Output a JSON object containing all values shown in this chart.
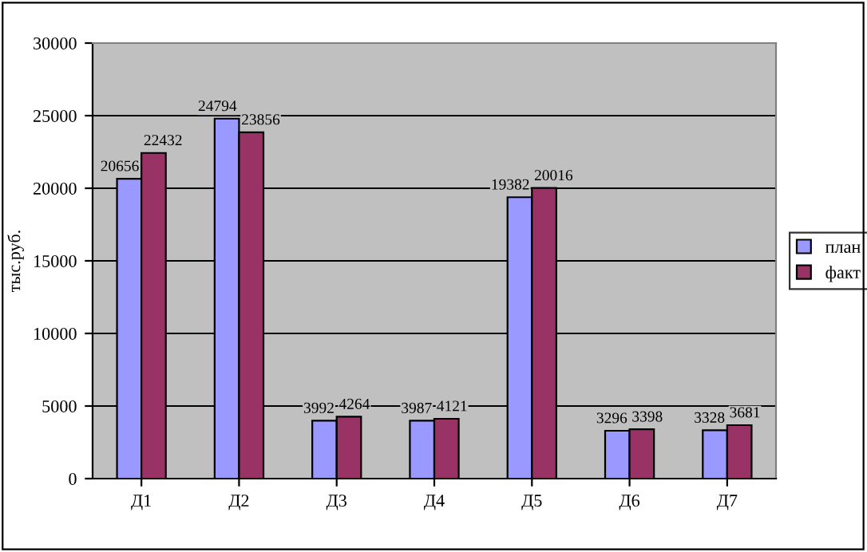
{
  "chart_data": {
    "type": "bar",
    "ylabel": "тыс.руб.",
    "categories": [
      "Д1",
      "Д2",
      "Д3",
      "Д4",
      "Д5",
      "Д6",
      "Д7"
    ],
    "series": [
      {
        "name": "план",
        "color": "#9999ff",
        "values": [
          20656,
          24794,
          3992,
          3987,
          19382,
          3296,
          3328
        ]
      },
      {
        "name": "факт",
        "color": "#993366",
        "values": [
          22432,
          23856,
          4264,
          4121,
          20016,
          3398,
          3681
        ]
      }
    ],
    "ylim": [
      0,
      30000
    ],
    "yticks": [
      0,
      5000,
      10000,
      15000,
      20000,
      25000,
      30000
    ],
    "grid": "y",
    "legend": "right",
    "data_labels": true
  }
}
